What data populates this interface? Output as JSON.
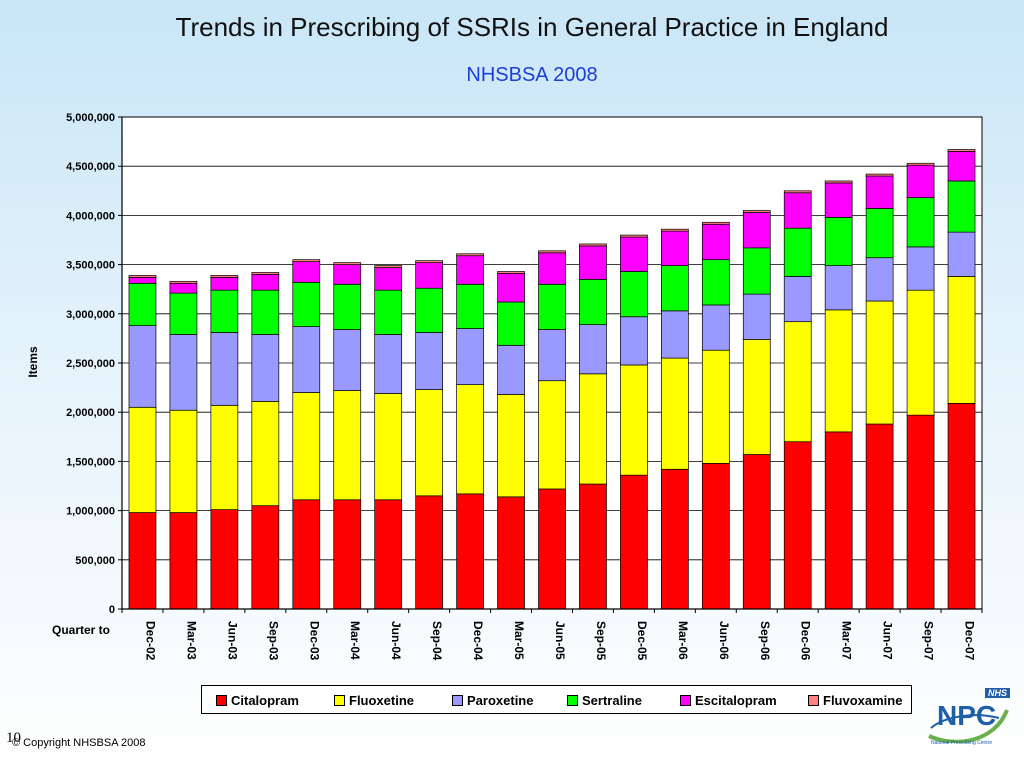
{
  "slide": {
    "title": "Trends in Prescribing of SSRIs in General Practice in England",
    "subtitle": "NHSBSA 2008",
    "slide_number": "10",
    "copyright": "© Copyright NHSBSA 2008",
    "logo_badge": "NHS",
    "logo_text": "NPC",
    "logo_caption": "National Prescribing Centre"
  },
  "chart_data": {
    "type": "bar",
    "stacked": true,
    "title": "",
    "xlabel": "Quarter to",
    "ylabel": "Items",
    "ylim": [
      0,
      5000000
    ],
    "yticks": [
      0,
      500000,
      1000000,
      1500000,
      2000000,
      2500000,
      3000000,
      3500000,
      4000000,
      4500000,
      5000000
    ],
    "ytick_labels": [
      "0",
      "500,000",
      "1,000,000",
      "1,500,000",
      "2,000,000",
      "2,500,000",
      "3,000,000",
      "3,500,000",
      "4,000,000",
      "4,500,000",
      "5,000,000"
    ],
    "grid": "horizontal",
    "legend_position": "bottom",
    "categories": [
      "Dec-02",
      "Mar-03",
      "Jun-03",
      "Sep-03",
      "Dec-03",
      "Mar-04",
      "Jun-04",
      "Sep-04",
      "Dec-04",
      "Mar-05",
      "Jun-05",
      "Sep-05",
      "Dec-05",
      "Mar-06",
      "Jun-06",
      "Sep-06",
      "Dec-06",
      "Mar-07",
      "Jun-07",
      "Sep-07",
      "Dec-07"
    ],
    "series": [
      {
        "name": "Citalopram",
        "color": "#ff0000",
        "values": [
          980000,
          980000,
          1010000,
          1050000,
          1110000,
          1110000,
          1110000,
          1150000,
          1170000,
          1140000,
          1220000,
          1270000,
          1360000,
          1420000,
          1480000,
          1570000,
          1700000,
          1800000,
          1880000,
          1970000,
          2090000
        ]
      },
      {
        "name": "Fluoxetine",
        "color": "#ffff00",
        "values": [
          1070000,
          1040000,
          1060000,
          1060000,
          1090000,
          1110000,
          1080000,
          1080000,
          1110000,
          1040000,
          1100000,
          1120000,
          1120000,
          1130000,
          1150000,
          1170000,
          1220000,
          1240000,
          1250000,
          1270000,
          1290000
        ]
      },
      {
        "name": "Paroxetine",
        "color": "#9999ff",
        "values": [
          830000,
          770000,
          740000,
          680000,
          670000,
          620000,
          600000,
          580000,
          570000,
          500000,
          520000,
          500000,
          490000,
          480000,
          460000,
          460000,
          460000,
          450000,
          440000,
          440000,
          450000
        ]
      },
      {
        "name": "Sertraline",
        "color": "#00ff00",
        "values": [
          430000,
          420000,
          430000,
          450000,
          450000,
          460000,
          450000,
          450000,
          450000,
          440000,
          460000,
          460000,
          460000,
          460000,
          460000,
          470000,
          490000,
          490000,
          500000,
          500000,
          520000
        ]
      },
      {
        "name": "Escitalopram",
        "color": "#ff00ff",
        "values": [
          60000,
          100000,
          130000,
          160000,
          210000,
          200000,
          230000,
          260000,
          290000,
          290000,
          320000,
          340000,
          350000,
          350000,
          360000,
          360000,
          360000,
          350000,
          330000,
          330000,
          300000
        ]
      },
      {
        "name": "Fluvoxamine",
        "color": "#ff8080",
        "values": [
          20000,
          20000,
          20000,
          20000,
          20000,
          20000,
          20000,
          20000,
          20000,
          20000,
          20000,
          20000,
          20000,
          20000,
          20000,
          20000,
          20000,
          20000,
          20000,
          20000,
          20000
        ]
      }
    ]
  }
}
